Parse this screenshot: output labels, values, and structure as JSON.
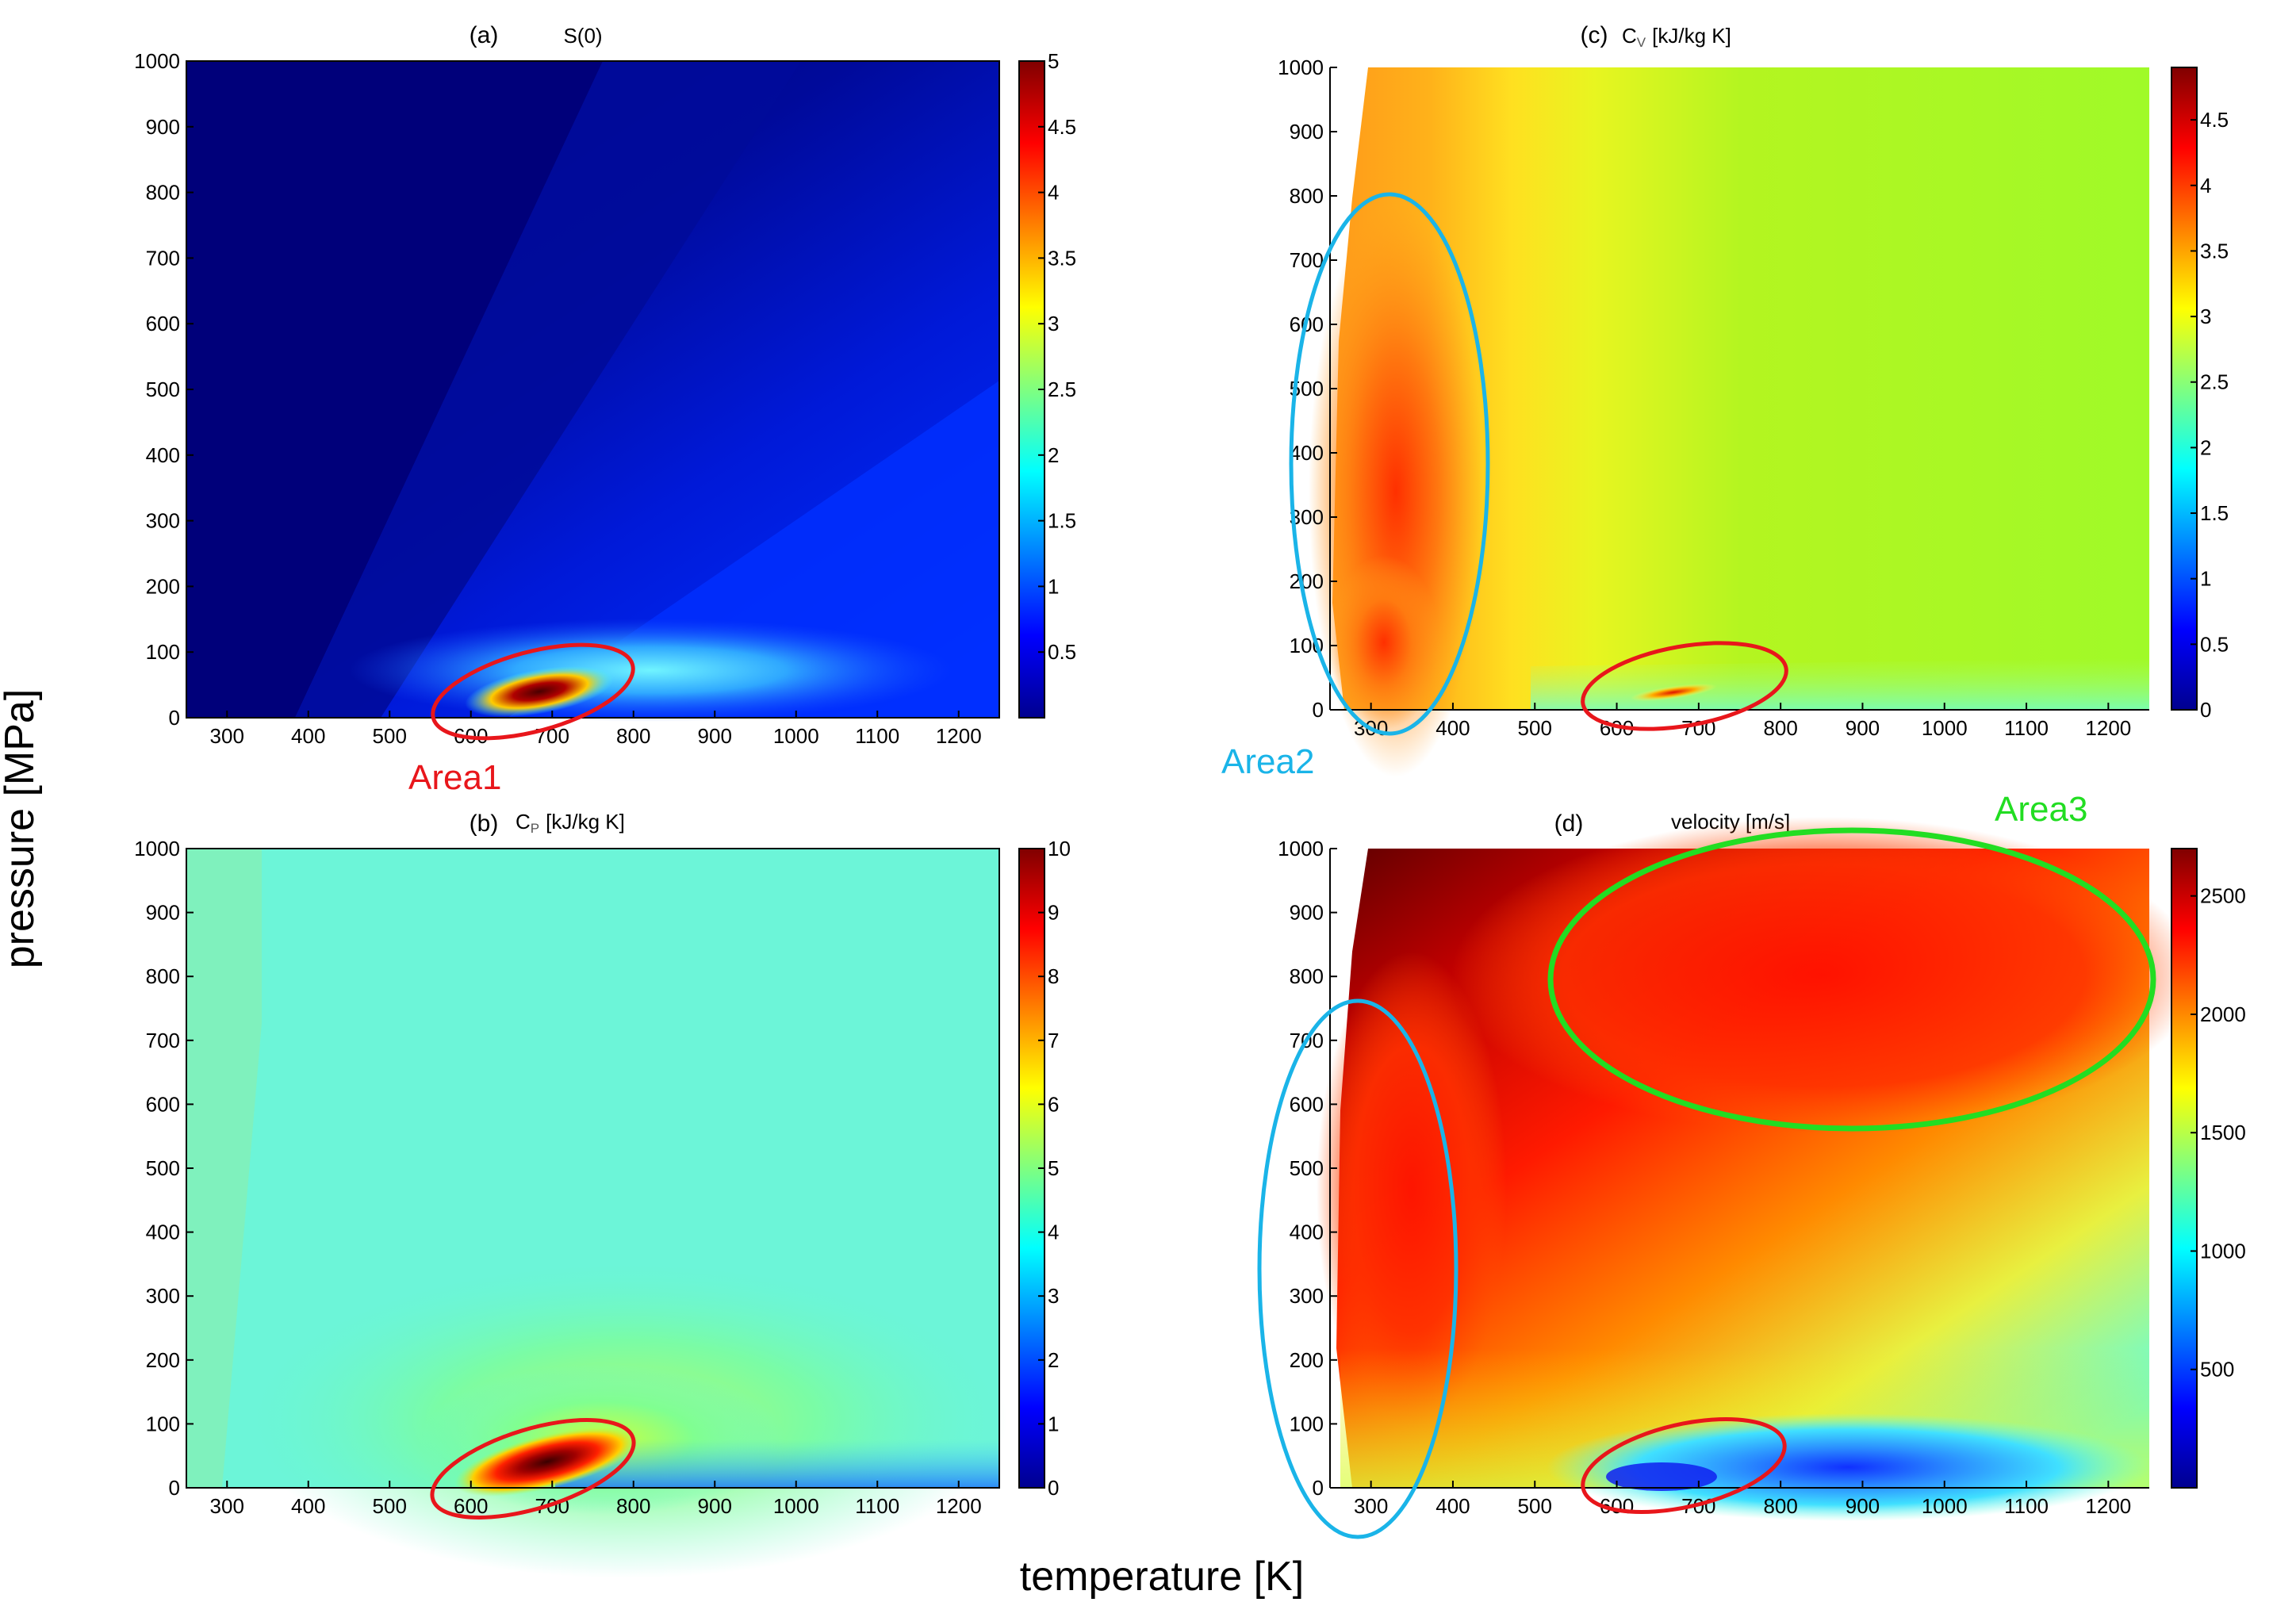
{
  "figure": {
    "xlabel": "temperature [K]",
    "ylabel": "pressure [MPa]"
  },
  "chart_data": [
    {
      "type": "heatmap",
      "panel": "(a)",
      "title": "S(0)",
      "colormap": "jet",
      "xlim": [
        250,
        1250
      ],
      "ylim": [
        0,
        1000
      ],
      "xticks": [
        300,
        400,
        500,
        600,
        700,
        800,
        900,
        1000,
        1100,
        1200
      ],
      "yticks": [
        0,
        100,
        200,
        300,
        400,
        500,
        600,
        700,
        800,
        900,
        1000
      ],
      "colorbar": {
        "min": 0,
        "max": 5,
        "ticks": [
          "0.5",
          "1",
          "1.5",
          "2",
          "2.5",
          "3",
          "3.5",
          "4",
          "4.5",
          "5"
        ]
      },
      "peak": {
        "x": 700,
        "y": 40,
        "value": 5
      },
      "annotations": [
        {
          "text": "Area1",
          "color": "#e8161b",
          "ellipse_center": [
            680,
            40
          ]
        }
      ]
    },
    {
      "type": "heatmap",
      "panel": "(b)",
      "title": "C",
      "title_sub": "P",
      "title_units": "[kJ/kg K]",
      "colormap": "jet",
      "xlim": [
        250,
        1250
      ],
      "ylim": [
        0,
        1000
      ],
      "xticks": [
        300,
        400,
        500,
        600,
        700,
        800,
        900,
        1000,
        1100,
        1200
      ],
      "yticks": [
        0,
        100,
        200,
        300,
        400,
        500,
        600,
        700,
        800,
        900,
        1000
      ],
      "colorbar": {
        "min": 0,
        "max": 10,
        "ticks": [
          "0",
          "1",
          "2",
          "3",
          "4",
          "5",
          "6",
          "7",
          "8",
          "9",
          "10"
        ]
      },
      "background_value": 3.5,
      "peak": {
        "x": 700,
        "y": 40,
        "value": 10
      },
      "annotations": [
        {
          "text": "",
          "color": "#e8161b",
          "ellipse_center": [
            680,
            40
          ]
        }
      ]
    },
    {
      "type": "heatmap",
      "panel": "(c)",
      "title": "C",
      "title_sub": "V",
      "title_units": "[kJ/kg K]",
      "colormap": "jet",
      "xlim": [
        250,
        1250
      ],
      "ylim": [
        0,
        1000
      ],
      "xticks": [
        300,
        400,
        500,
        600,
        700,
        800,
        900,
        1000,
        1100,
        1200
      ],
      "yticks": [
        0,
        100,
        200,
        300,
        400,
        500,
        600,
        700,
        800,
        900,
        1000
      ],
      "colorbar": {
        "min": 0,
        "max": 4.9,
        "ticks": [
          "0",
          "0.5",
          "1",
          "1.5",
          "2",
          "2.5",
          "3",
          "3.5",
          "4",
          "4.5"
        ]
      },
      "background_value": 2.8,
      "peak": {
        "x": 680,
        "y": 30,
        "value": 4.0
      },
      "annotations": [
        {
          "text": "Area2",
          "color": "#1ab4e8",
          "ellipse_center": [
            320,
            400
          ]
        },
        {
          "text": "",
          "color": "#e8161b",
          "ellipse_center": [
            700,
            40
          ]
        }
      ]
    },
    {
      "type": "heatmap",
      "panel": "(d)",
      "title": "velocity [m/s]",
      "colormap": "jet",
      "xlim": [
        250,
        1250
      ],
      "ylim": [
        0,
        1000
      ],
      "xticks": [
        300,
        400,
        500,
        600,
        700,
        800,
        900,
        1000,
        1100,
        1200
      ],
      "yticks": [
        0,
        100,
        200,
        300,
        400,
        500,
        600,
        700,
        800,
        900,
        1000
      ],
      "colorbar": {
        "min": 0,
        "max": 2700,
        "ticks": [
          "500",
          "1000",
          "1500",
          "2000",
          "2500"
        ]
      },
      "min_region": {
        "x": 720,
        "y": 30,
        "value": 500
      },
      "max_region": {
        "x": 300,
        "y": 1000,
        "value": 2700
      },
      "annotations": [
        {
          "text": "Area3",
          "color": "#22dd22",
          "ellipse_center": [
            900,
            790
          ]
        },
        {
          "text": "",
          "color": "#1ab4e8",
          "ellipse_center": [
            300,
            350
          ]
        },
        {
          "text": "",
          "color": "#e8161b",
          "ellipse_center": [
            680,
            40
          ]
        }
      ]
    }
  ]
}
